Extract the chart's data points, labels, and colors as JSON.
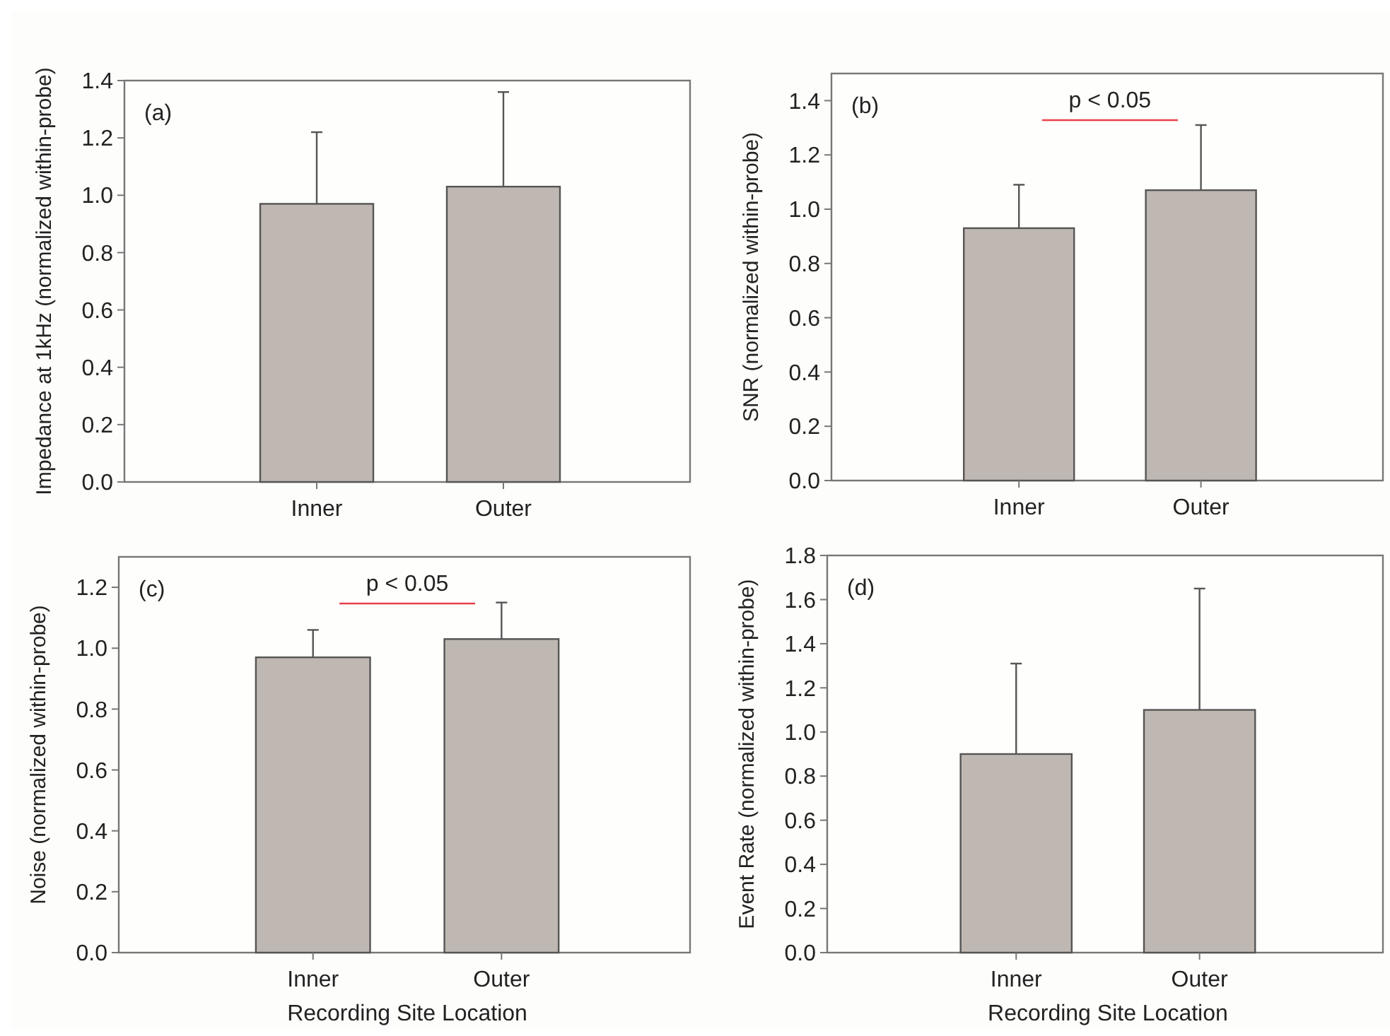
{
  "chart_data": [
    {
      "type": "bar",
      "ylabel": "Impedance at 1kHz (normalized within-probe)",
      "categories": [
        "Inner",
        "Outer"
      ],
      "values": [
        0.97,
        1.03
      ],
      "errors": [
        0.25,
        0.33
      ],
      "color": "#bfb8b2",
      "ylim": [
        0,
        1.4
      ],
      "yticks": [
        {
          "value": 0,
          "label": "0.0"
        },
        {
          "value": 0.2,
          "label": "0.2"
        },
        {
          "value": 0.4,
          "label": "0.4"
        },
        {
          "value": 0.6,
          "label": "0.6"
        },
        {
          "value": 0.8,
          "label": "0.8"
        },
        {
          "value": 1,
          "label": "1.0"
        },
        {
          "value": 1.2,
          "label": "1.2"
        },
        {
          "value": 1.4,
          "label": "1.4"
        }
      ],
      "annotations": [
        "(a)"
      ]
    },
    {
      "type": "bar",
      "ylabel": "SNR (normalized within-probe)",
      "categories": [
        "Inner",
        "Outer"
      ],
      "values": [
        0.93,
        1.07
      ],
      "errors": [
        0.16,
        0.24
      ],
      "color": "#bfb8b2",
      "ylim": [
        0,
        1.5
      ],
      "yticks": [
        {
          "value": 0,
          "label": "0.0"
        },
        {
          "value": 0.2,
          "label": "0.2"
        },
        {
          "value": 0.4,
          "label": "0.4"
        },
        {
          "value": 0.6,
          "label": "0.6"
        },
        {
          "value": 0.8,
          "label": "0.8"
        },
        {
          "value": 1,
          "label": "1.0"
        },
        {
          "value": 1.2,
          "label": "1.2"
        },
        {
          "value": 1.4,
          "label": "1.4"
        }
      ],
      "annotations": [
        "(b)",
        "p < 0.05"
      ]
    },
    {
      "type": "bar",
      "xlabel": "Recording Site Location",
      "ylabel": "Noise (normalized within-probe)",
      "categories": [
        "Inner",
        "Outer"
      ],
      "values": [
        0.97,
        1.03
      ],
      "errors": [
        0.09,
        0.12
      ],
      "color": "#bfb8b2",
      "ylim": [
        0,
        1.3
      ],
      "yticks": [
        {
          "value": 0,
          "label": "0.0"
        },
        {
          "value": 0.2,
          "label": "0.2"
        },
        {
          "value": 0.4,
          "label": "0.4"
        },
        {
          "value": 0.6,
          "label": "0.6"
        },
        {
          "value": 0.8,
          "label": "0.8"
        },
        {
          "value": 1,
          "label": "1.0"
        },
        {
          "value": 1.2,
          "label": "1.2"
        }
      ],
      "annotations": [
        "(c)",
        "p < 0.05"
      ]
    },
    {
      "type": "bar",
      "xlabel": "Recording Site Location",
      "ylabel": "Event Rate (normalized within-probe)",
      "categories": [
        "Inner",
        "Outer"
      ],
      "values": [
        0.9,
        1.1
      ],
      "errors": [
        0.41,
        0.55
      ],
      "color": "#bfb8b2",
      "ylim": [
        0,
        1.8
      ],
      "yticks": [
        {
          "value": 0,
          "label": "0.0"
        },
        {
          "value": 0.2,
          "label": "0.2"
        },
        {
          "value": 0.4,
          "label": "0.4"
        },
        {
          "value": 0.6,
          "label": "0.6"
        },
        {
          "value": 0.8,
          "label": "0.8"
        },
        {
          "value": 1,
          "label": "1.0"
        },
        {
          "value": 1.2,
          "label": "1.2"
        },
        {
          "value": 1.4,
          "label": "1.4"
        },
        {
          "value": 1.6,
          "label": "1.6"
        },
        {
          "value": 1.8,
          "label": "1.8"
        }
      ],
      "annotations": [
        "(d)"
      ]
    }
  ]
}
